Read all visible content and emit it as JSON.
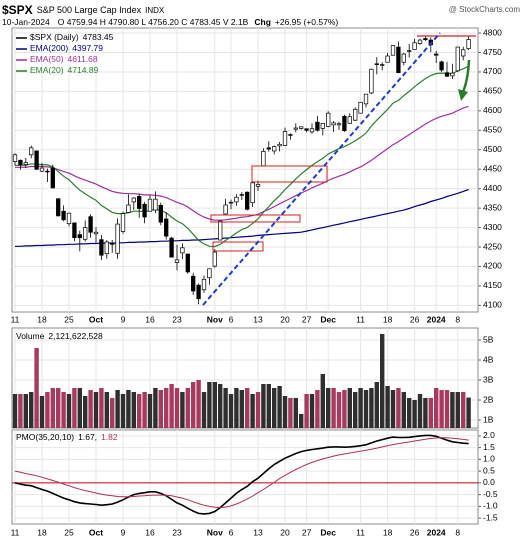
{
  "header": {
    "symbol": "$SPX",
    "name": "S&P 500 Large Cap Index",
    "exchange": "INDX",
    "date": "10-Jan-2024",
    "ohlc": "O 4759.94 H 4790.80 L 4756.20 C 4783.45 V 2.1B",
    "change_label": "Chg",
    "change": "+26.95 (+0.57%)",
    "watermark": "@ StockCharts.com"
  },
  "chart_data": [
    {
      "type": "candlestick",
      "name": "$SPX (Daily)",
      "color": "#000000",
      "categories": [
        "11",
        null,
        null,
        null,
        null,
        "18",
        null,
        null,
        null,
        null,
        "25",
        null,
        null,
        null,
        null,
        "Oct",
        null,
        null,
        null,
        null,
        "9",
        null,
        null,
        null,
        null,
        "16",
        null,
        null,
        null,
        null,
        "23",
        null,
        null,
        null,
        null,
        null,
        null,
        "Nov",
        null,
        null,
        "6",
        null,
        null,
        null,
        null,
        "13",
        null,
        null,
        null,
        null,
        "20",
        null,
        null,
        null,
        "27",
        null,
        null,
        null,
        "Dec",
        null,
        null,
        null,
        null,
        null,
        "11",
        null,
        null,
        null,
        null,
        "18",
        null,
        null,
        null,
        null,
        "26",
        null,
        null,
        null,
        "2024",
        null,
        null,
        null,
        "8",
        null,
        null
      ],
      "open": [
        4470,
        4473,
        4462,
        4487,
        4497,
        4445,
        4445,
        4453,
        4374,
        4342,
        4310,
        4312,
        4282,
        4270,
        4328,
        4284,
        4269,
        4233,
        4259,
        4234,
        4290,
        4339,
        4366,
        4380,
        4360,
        4342,
        4345,
        4357,
        4322,
        4273,
        4210,
        4235,
        4232,
        4175,
        4152,
        4140,
        4171,
        4201,
        4268,
        4335,
        4364,
        4366,
        4385,
        4391,
        4364,
        4406,
        4459,
        4505,
        4497,
        4510,
        4511,
        4539,
        4553,
        4555,
        4554,
        4546,
        4571,
        4555,
        4560,
        4564,
        4564,
        4586,
        4568,
        4576,
        4594,
        4618,
        4646,
        4721,
        4719,
        4725,
        4743,
        4764,
        4725,
        4753,
        4758,
        4773,
        4786,
        4782,
        4746,
        4726,
        4698,
        4690,
        4703,
        4741,
        4759.94
      ],
      "high": [
        4491,
        4475,
        4479,
        4511,
        4498,
        4466,
        4452,
        4462,
        4376,
        4357,
        4338,
        4313,
        4292,
        4318,
        4334,
        4301,
        4281,
        4268,
        4268,
        4324,
        4341,
        4385,
        4378,
        4386,
        4366,
        4383,
        4393,
        4364,
        4339,
        4276,
        4256,
        4259,
        4233,
        4184,
        4156,
        4177,
        4195,
        4245,
        4317,
        4374,
        4372,
        4386,
        4391,
        4393,
        4419,
        4421,
        4504,
        4522,
        4511,
        4520,
        4557,
        4542,
        4568,
        4560,
        4555,
        4568,
        4587,
        4569,
        4599,
        4574,
        4572,
        4590,
        4594,
        4609,
        4623,
        4643,
        4709,
        4738,
        4725,
        4749,
        4769,
        4778,
        4749,
        4772,
        4785,
        4785,
        4793,
        4789,
        4754,
        4729,
        4726,
        4721,
        4764,
        4765,
        4790.8
      ],
      "low": [
        4460,
        4449,
        4453,
        4478,
        4448,
        4443,
        4417,
        4401,
        4329,
        4316,
        4303,
        4265,
        4239,
        4264,
        4274,
        4260,
        4217,
        4220,
        4235,
        4220,
        4284,
        4339,
        4345,
        4325,
        4311,
        4342,
        4337,
        4306,
        4269,
        4223,
        4190,
        4219,
        4181,
        4127,
        4103,
        4132,
        4153,
        4197,
        4268,
        4335,
        4347,
        4356,
        4371,
        4344,
        4353,
        4394,
        4459,
        4495,
        4488,
        4496,
        4510,
        4526,
        4545,
        4552,
        4545,
        4541,
        4547,
        4537,
        4558,
        4546,
        4551,
        4546,
        4567,
        4574,
        4594,
        4609,
        4643,
        4694,
        4704,
        4725,
        4743,
        4697,
        4717,
        4737,
        4758,
        4770,
        4780,
        4751,
        4723,
        4700,
        4687,
        4682,
        4700,
        4730,
        4756.2
      ],
      "close": [
        4487,
        4461,
        4467,
        4505,
        4450,
        4453,
        4444,
        4402,
        4330,
        4320,
        4337,
        4274,
        4274,
        4300,
        4288,
        4288,
        4229,
        4263,
        4258,
        4309,
        4336,
        4358,
        4376,
        4349,
        4327,
        4373,
        4373,
        4314,
        4278,
        4224,
        4217,
        4248,
        4186,
        4137,
        4117,
        4167,
        4194,
        4237,
        4317,
        4358,
        4365,
        4378,
        4383,
        4347,
        4415,
        4411,
        4496,
        4502,
        4508,
        4514,
        4547,
        4538,
        4556,
        4559,
        4550,
        4554,
        4550,
        4568,
        4594,
        4569,
        4567,
        4549,
        4585,
        4604,
        4622,
        4643,
        4707,
        4719,
        4719,
        4741,
        4768,
        4698,
        4746,
        4755,
        4775,
        4782,
        4783,
        4770,
        4743,
        4705,
        4689,
        4697,
        4764,
        4757,
        4783.45
      ],
      "series": [
        {
          "name": "EMA(200)",
          "color": "#000080",
          "values": [
            4252,
            4252,
            4253,
            4253,
            4254,
            4254,
            4255,
            4255,
            4256,
            4256,
            4257,
            4257,
            4258,
            4258,
            4259,
            4259,
            4260,
            4260,
            4260,
            4261,
            4261,
            4262,
            4262,
            4263,
            4263,
            4264,
            4264,
            4265,
            4265,
            4266,
            4266,
            4267,
            4267,
            4268,
            4268,
            4269,
            4270,
            4271,
            4272,
            4273,
            4274,
            4275,
            4276,
            4277,
            4278,
            4280,
            4281,
            4282,
            4283,
            4284,
            4285,
            4286,
            4287,
            4288,
            4291,
            4294,
            4297,
            4300,
            4303,
            4306,
            4309,
            4312,
            4315,
            4318,
            4321,
            4324,
            4327,
            4330,
            4333,
            4336,
            4339,
            4342,
            4345,
            4349,
            4354,
            4358,
            4362,
            4367,
            4371,
            4375,
            4380,
            4384,
            4388,
            4393,
            4397.79
          ]
        },
        {
          "name": "EMA(50)",
          "color": "#9b30a0",
          "values": [
            4455,
            4455,
            4455,
            4457,
            4457,
            4457,
            4456,
            4454,
            4449,
            4444,
            4440,
            4433,
            4427,
            4422,
            4417,
            4412,
            4405,
            4399,
            4393,
            4390,
            4388,
            4387,
            4387,
            4386,
            4384,
            4384,
            4383,
            4381,
            4377,
            4371,
            4365,
            4360,
            4353,
            4343,
            4334,
            4327,
            4322,
            4319,
            4319,
            4320,
            4322,
            4324,
            4327,
            4328,
            4331,
            4334,
            4341,
            4347,
            4354,
            4361,
            4368,
            4375,
            4382,
            4389,
            4395,
            4402,
            4408,
            4414,
            4421,
            4427,
            4432,
            4437,
            4443,
            4450,
            4456,
            4464,
            4473,
            4483,
            4493,
            4503,
            4513,
            4521,
            4530,
            4539,
            4548,
            4557,
            4566,
            4574,
            4581,
            4586,
            4590,
            4594,
            4601,
            4607,
            4611.68
          ]
        },
        {
          "name": "EMA(20)",
          "color": "#2e7d2e",
          "values": [
            4460,
            4460,
            4460,
            4464,
            4463,
            4462,
            4461,
            4456,
            4444,
            4432,
            4423,
            4409,
            4396,
            4387,
            4378,
            4370,
            4357,
            4348,
            4339,
            4336,
            4336,
            4338,
            4342,
            4342,
            4341,
            4344,
            4347,
            4344,
            4338,
            4327,
            4317,
            4310,
            4298,
            4283,
            4267,
            4258,
            4252,
            4251,
            4257,
            4267,
            4276,
            4286,
            4295,
            4300,
            4311,
            4322,
            4339,
            4354,
            4369,
            4382,
            4398,
            4411,
            4425,
            4438,
            4449,
            4460,
            4469,
            4478,
            4489,
            4496,
            4503,
            4508,
            4515,
            4523,
            4532,
            4543,
            4561,
            4576,
            4590,
            4604,
            4620,
            4627,
            4639,
            4650,
            4662,
            4673,
            4683,
            4691,
            4696,
            4697,
            4696,
            4696,
            4703,
            4708,
            4714.89
          ]
        }
      ],
      "ylim": [
        4083,
        4813
      ],
      "yticks": [
        4100,
        4150,
        4200,
        4250,
        4300,
        4350,
        4400,
        4450,
        4500,
        4550,
        4600,
        4650,
        4700,
        4750,
        4800
      ],
      "grid": true,
      "legend": "top-left"
    },
    {
      "type": "bar",
      "name": "Volume",
      "legend_value": "2,121,622,528",
      "up_color": "#2f2f2f",
      "down_color": "#a8395f",
      "values": [
        2.3,
        2.3,
        2.3,
        2.4,
        4.6,
        2.2,
        2.4,
        2.6,
        2.6,
        2.4,
        2.3,
        2.6,
        2.6,
        2.2,
        2.5,
        2.4,
        2.6,
        2.4,
        2.1,
        2.5,
        2.3,
        2.5,
        2.4,
        2.3,
        2.4,
        2.3,
        2.6,
        2.5,
        2.6,
        2.8,
        2.6,
        2.4,
        2.6,
        2.9,
        3.0,
        2.4,
        2.9,
        2.9,
        2.8,
        2.6,
        2.3,
        2.6,
        2.5,
        2.6,
        2.3,
        2.4,
        2.8,
        2.8,
        2.6,
        2.7,
        2.2,
        2.1,
        2.1,
        1.3,
        2.3,
        2.3,
        2.5,
        3.3,
        2.6,
        2.6,
        2.4,
        2.5,
        2.6,
        2.4,
        2.6,
        2.5,
        2.6,
        2.9,
        5.3,
        2.7,
        2.5,
        2.6,
        2.4,
        2.1,
        2.0,
        2.3,
        2.1,
        2.1,
        2.6,
        2.5,
        2.5,
        2.4,
        2.4,
        2.4,
        2.121622528
      ],
      "ylim": [
        0.6,
        5.6
      ],
      "yticks": [
        {
          "value": 1,
          "label": "1B"
        },
        {
          "value": 2,
          "label": "2B"
        },
        {
          "value": 3,
          "label": "3B"
        },
        {
          "value": 4,
          "label": "4B"
        },
        {
          "value": 5,
          "label": "5B"
        }
      ],
      "grid": true,
      "legend": "top-left"
    },
    {
      "type": "line",
      "legend_separator": ",",
      "zero_line_color": "#cc0000",
      "series": [
        {
          "name": "PMO(35,20,10)",
          "color": "#000000",
          "values": [
            0,
            -0.05,
            -0.1,
            -0.12,
            -0.2,
            -0.28,
            -0.35,
            -0.45,
            -0.55,
            -0.65,
            -0.72,
            -0.8,
            -0.85,
            -0.88,
            -0.9,
            -0.92,
            -0.95,
            -0.93,
            -0.9,
            -0.82,
            -0.72,
            -0.6,
            -0.5,
            -0.45,
            -0.42,
            -0.38,
            -0.38,
            -0.45,
            -0.55,
            -0.7,
            -0.85,
            -0.95,
            -1.08,
            -1.2,
            -1.3,
            -1.32,
            -1.3,
            -1.22,
            -1.05,
            -0.85,
            -0.65,
            -0.45,
            -0.28,
            -0.15,
            0.05,
            0.2,
            0.4,
            0.6,
            0.78,
            0.92,
            1.05,
            1.15,
            1.25,
            1.33,
            1.38,
            1.42,
            1.45,
            1.48,
            1.52,
            1.53,
            1.53,
            1.52,
            1.53,
            1.55,
            1.58,
            1.62,
            1.7,
            1.78,
            1.84,
            1.9,
            1.95,
            1.93,
            1.93,
            1.94,
            1.97,
            2.0,
            2.02,
            2.02,
            1.98,
            1.9,
            1.82,
            1.75,
            1.72,
            1.69,
            1.67
          ]
        },
        {
          "color": "#b03050",
          "values": [
            0.5,
            0.45,
            0.4,
            0.35,
            0.3,
            0.24,
            0.17,
            0.1,
            0.03,
            -0.05,
            -0.12,
            -0.2,
            -0.27,
            -0.33,
            -0.38,
            -0.43,
            -0.48,
            -0.52,
            -0.55,
            -0.58,
            -0.59,
            -0.59,
            -0.58,
            -0.56,
            -0.55,
            -0.53,
            -0.52,
            -0.52,
            -0.53,
            -0.55,
            -0.6,
            -0.65,
            -0.72,
            -0.8,
            -0.88,
            -0.95,
            -1.0,
            -1.04,
            -1.05,
            -1.03,
            -0.98,
            -0.9,
            -0.8,
            -0.69,
            -0.56,
            -0.42,
            -0.28,
            -0.13,
            0.02,
            0.18,
            0.32,
            0.45,
            0.57,
            0.68,
            0.78,
            0.87,
            0.95,
            1.02,
            1.08,
            1.14,
            1.19,
            1.23,
            1.27,
            1.31,
            1.35,
            1.39,
            1.43,
            1.48,
            1.53,
            1.58,
            1.63,
            1.67,
            1.71,
            1.74,
            1.78,
            1.82,
            1.86,
            1.89,
            1.91,
            1.92,
            1.92,
            1.9,
            1.88,
            1.85,
            1.82
          ]
        }
      ],
      "ylim": [
        -1.75,
        2.25
      ],
      "yticks": [
        {
          "value": 2,
          "label": "2.0"
        },
        1.5,
        {
          "value": 1,
          "label": "1.0"
        },
        0.5,
        {
          "value": 0,
          "label": "0.0"
        },
        -0.5,
        {
          "value": -1,
          "label": "-1.0"
        },
        -1.5
      ],
      "grid": true,
      "legend": "top-left"
    }
  ]
}
